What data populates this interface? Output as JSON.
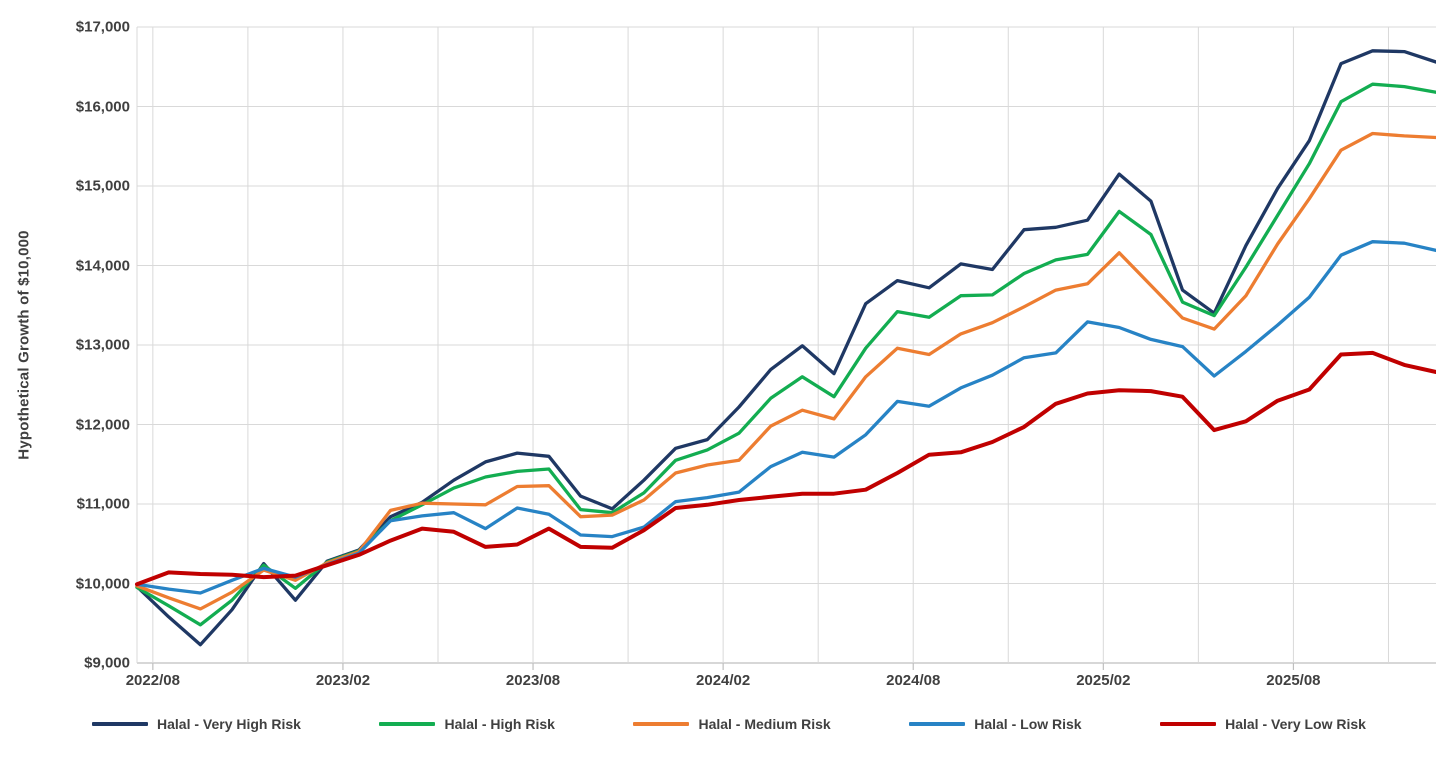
{
  "chart_data": {
    "type": "line",
    "title": "",
    "ylabel": "Hypothetical Growth of $10,000",
    "xlabel": "",
    "ylim": [
      9000,
      17000
    ],
    "y_tick_step": 1000,
    "y_tick_labels": [
      "$17,000",
      "$16,000",
      "$15,000",
      "$14,000",
      "$13,000",
      "$12,000",
      "$11,000",
      "$10,000",
      "$9,000"
    ],
    "grid": "both",
    "legend_position": "bottom",
    "categories": [
      "2022/07",
      "2022/08",
      "2022/09",
      "2022/10",
      "2022/11",
      "2022/12",
      "2023/01",
      "2023/02",
      "2023/03",
      "2023/04",
      "2023/05",
      "2023/06",
      "2023/07",
      "2023/08",
      "2023/09",
      "2023/10",
      "2023/11",
      "2023/12",
      "2024/01",
      "2024/02",
      "2024/03",
      "2024/04",
      "2024/05",
      "2024/06",
      "2024/07",
      "2024/08",
      "2024/09",
      "2024/10",
      "2024/11",
      "2024/12",
      "2025/01",
      "2025/02",
      "2025/03",
      "2025/04",
      "2025/05",
      "2025/06",
      "2025/07",
      "2025/08",
      "2025/09",
      "2025/10",
      "2025/11",
      "2025/12"
    ],
    "x_tick_labels": [
      "2022/08",
      "2023/02",
      "2023/08",
      "2024/02",
      "2024/08",
      "2025/02",
      "2025/08"
    ],
    "x_tick_indices": [
      1,
      7,
      13,
      19,
      25,
      31,
      37
    ],
    "x_gridline_every": 3,
    "series": [
      {
        "name": "Halal - Very High Risk",
        "color": "#1F3864",
        "width": 3.3,
        "values": [
          9960,
          9580,
          9230,
          9670,
          10250,
          9790,
          10280,
          10420,
          10840,
          11020,
          11300,
          11530,
          11640,
          11600,
          11100,
          10940,
          11300,
          11700,
          11810,
          12220,
          12690,
          12990,
          12640,
          13520,
          13810,
          13720,
          14020,
          13950,
          14450,
          14480,
          14570,
          15150,
          14810,
          13690,
          13400,
          14250,
          14970,
          15570,
          16540,
          16700,
          16690,
          16560
        ]
      },
      {
        "name": "Halal - High Risk",
        "color": "#13AD51",
        "width": 3.3,
        "values": [
          9950,
          9720,
          9480,
          9790,
          10230,
          9940,
          10270,
          10410,
          10790,
          10990,
          11200,
          11340,
          11410,
          11440,
          10930,
          10890,
          11140,
          11550,
          11680,
          11890,
          12330,
          12600,
          12350,
          12960,
          13420,
          13350,
          13620,
          13630,
          13900,
          14070,
          14140,
          14680,
          14390,
          13540,
          13370,
          13980,
          14630,
          15280,
          16060,
          16280,
          16250,
          16180
        ]
      },
      {
        "name": "Halal - Medium Risk",
        "color": "#ED7D31",
        "width": 3.3,
        "values": [
          9970,
          9820,
          9680,
          9890,
          10170,
          10040,
          10260,
          10400,
          10920,
          11010,
          11000,
          10990,
          11220,
          11230,
          10840,
          10860,
          11050,
          11390,
          11490,
          11550,
          11980,
          12180,
          12070,
          12600,
          12960,
          12880,
          13140,
          13280,
          13480,
          13690,
          13770,
          14160,
          13750,
          13340,
          13200,
          13620,
          14270,
          14840,
          15450,
          15660,
          15630,
          15610
        ]
      },
      {
        "name": "Halal - Low Risk",
        "color": "#2783C5",
        "width": 3.3,
        "values": [
          9990,
          9930,
          9880,
          10040,
          10190,
          10080,
          10240,
          10380,
          10790,
          10850,
          10890,
          10690,
          10950,
          10870,
          10610,
          10590,
          10710,
          11030,
          11080,
          11150,
          11470,
          11650,
          11590,
          11870,
          12290,
          12230,
          12460,
          12620,
          12840,
          12900,
          13290,
          13220,
          13070,
          12980,
          12610,
          12920,
          13250,
          13600,
          14130,
          14300,
          14280,
          14190
        ]
      },
      {
        "name": "Halal - Very Low Risk",
        "color": "#C00000",
        "width": 4,
        "values": [
          9990,
          10140,
          10120,
          10110,
          10080,
          10100,
          10230,
          10360,
          10540,
          10690,
          10650,
          10460,
          10490,
          10690,
          10460,
          10450,
          10670,
          10950,
          10990,
          11050,
          11090,
          11130,
          11130,
          11180,
          11390,
          11620,
          11650,
          11780,
          11970,
          12260,
          12390,
          12430,
          12420,
          12350,
          11930,
          12040,
          12300,
          12440,
          12880,
          12900,
          12750,
          12660
        ]
      }
    ]
  },
  "colors": {
    "gridline": "#d9d9d9",
    "axis_line": "#bfbfbf",
    "label_text": "#404040"
  },
  "legend": {
    "items": [
      {
        "label": "Halal - Very High Risk",
        "color": "#1F3864"
      },
      {
        "label": "Halal - High Risk",
        "color": "#13AD51"
      },
      {
        "label": "Halal - Medium Risk",
        "color": "#ED7D31"
      },
      {
        "label": "Halal - Low Risk",
        "color": "#2783C5"
      },
      {
        "label": "Halal - Very Low Risk",
        "color": "#C00000"
      }
    ]
  },
  "y_axis": {
    "title": "Hypothetical Growth of $10,000"
  }
}
